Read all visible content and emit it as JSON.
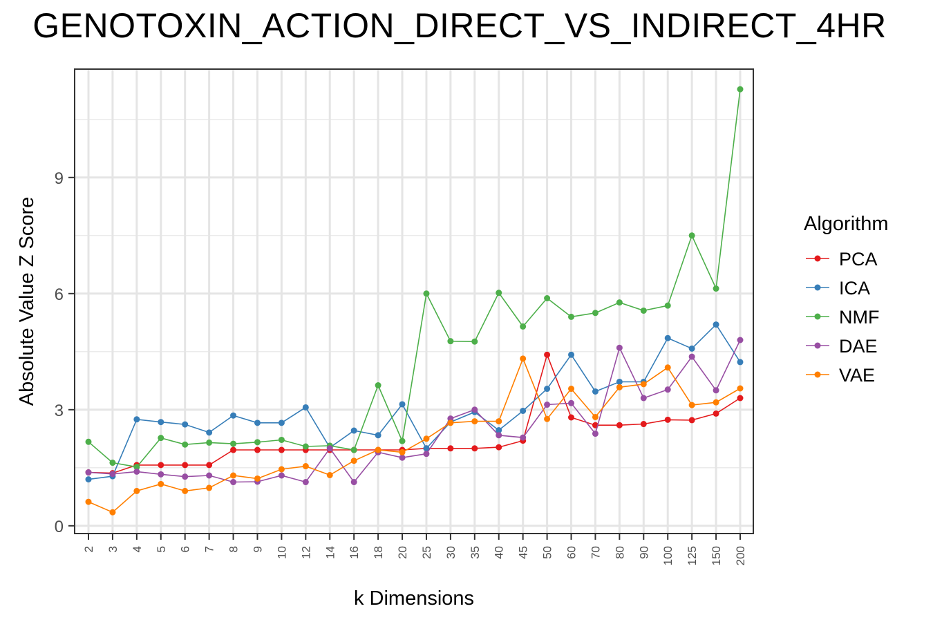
{
  "chart_data": {
    "type": "line",
    "title": "GENOTOXIN_ACTION_DIRECT_VS_INDIRECT_4HR",
    "xlabel": "k Dimensions",
    "ylabel": "Absolute Value Z Score",
    "categories": [
      "2",
      "3",
      "4",
      "5",
      "6",
      "7",
      "8",
      "9",
      "10",
      "12",
      "14",
      "16",
      "18",
      "20",
      "25",
      "30",
      "35",
      "40",
      "45",
      "50",
      "60",
      "70",
      "80",
      "90",
      "100",
      "125",
      "150",
      "200"
    ],
    "yticks": [
      "0",
      "3",
      "6",
      "9"
    ],
    "ylim": [
      -0.2,
      11.8
    ],
    "grid": true,
    "legend": {
      "title": "Algorithm",
      "position": "right"
    },
    "series": [
      {
        "name": "PCA",
        "color": "#E41A1C",
        "values": [
          1.38,
          1.36,
          1.57,
          1.57,
          1.57,
          1.57,
          1.96,
          1.96,
          1.96,
          1.96,
          1.96,
          1.96,
          1.96,
          1.96,
          2.0,
          2.0,
          2.0,
          2.03,
          2.2,
          4.42,
          2.8,
          2.6,
          2.6,
          2.63,
          2.74,
          2.73,
          2.9,
          3.3
        ]
      },
      {
        "name": "ICA",
        "color": "#377EB8",
        "values": [
          1.2,
          1.28,
          2.75,
          2.68,
          2.62,
          2.41,
          2.85,
          2.66,
          2.66,
          3.06,
          2.02,
          2.46,
          2.34,
          3.14,
          2.0,
          2.68,
          2.94,
          2.47,
          2.97,
          3.54,
          4.42,
          3.47,
          3.72,
          3.72,
          4.85,
          4.58,
          5.2,
          4.23
        ]
      },
      {
        "name": "NMF",
        "color": "#4DAF4A",
        "values": [
          2.17,
          1.63,
          1.52,
          2.27,
          2.1,
          2.15,
          2.12,
          2.16,
          2.22,
          2.05,
          2.07,
          1.96,
          3.63,
          2.19,
          6.0,
          4.77,
          4.76,
          6.02,
          5.15,
          5.88,
          5.4,
          5.5,
          5.77,
          5.56,
          5.69,
          7.5,
          6.13,
          11.28
        ]
      },
      {
        "name": "DAE",
        "color": "#984EA3",
        "values": [
          1.38,
          1.34,
          1.4,
          1.33,
          1.27,
          1.3,
          1.13,
          1.14,
          1.3,
          1.13,
          2.0,
          1.13,
          1.9,
          1.76,
          1.86,
          2.77,
          3.0,
          2.34,
          2.28,
          3.13,
          3.17,
          2.38,
          4.6,
          3.3,
          3.52,
          4.37,
          3.5,
          4.8
        ]
      },
      {
        "name": "VAE",
        "color": "#FF7F00",
        "values": [
          0.62,
          0.35,
          0.9,
          1.08,
          0.9,
          0.98,
          1.3,
          1.22,
          1.46,
          1.54,
          1.31,
          1.68,
          1.96,
          1.9,
          2.25,
          2.66,
          2.7,
          2.7,
          4.32,
          2.76,
          3.54,
          2.81,
          3.58,
          3.66,
          4.09,
          3.12,
          3.19,
          3.55
        ]
      }
    ]
  }
}
